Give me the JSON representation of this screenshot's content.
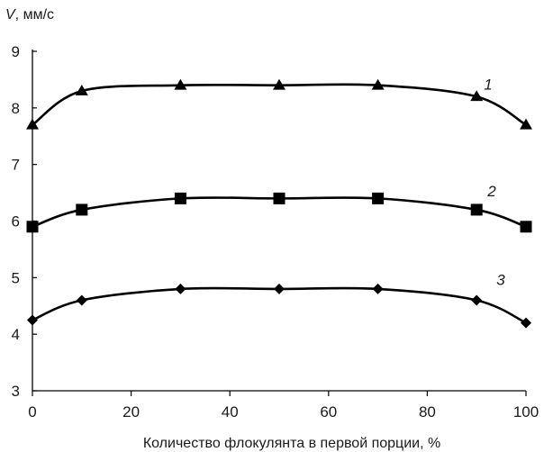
{
  "chart_data": {
    "type": "line",
    "ylabel_var": "V",
    "ylabel_unit": ", мм/с",
    "xlabel": "Количество флокулянта в первой порции, %",
    "xlim": [
      0,
      100
    ],
    "ylim": [
      3,
      9
    ],
    "x_ticks": [
      0,
      20,
      40,
      60,
      80,
      100
    ],
    "y_ticks": [
      3,
      4,
      5,
      6,
      7,
      8,
      9
    ],
    "grid": false,
    "legend": "none",
    "x": [
      0,
      10,
      30,
      50,
      70,
      90,
      100
    ],
    "series": [
      {
        "name": "1",
        "marker": "triangle",
        "color": "#000000",
        "values": [
          7.7,
          8.3,
          8.4,
          8.4,
          8.4,
          8.2,
          7.7
        ]
      },
      {
        "name": "2",
        "marker": "square",
        "color": "#000000",
        "values": [
          5.9,
          6.2,
          6.4,
          6.4,
          6.4,
          6.2,
          5.9
        ]
      },
      {
        "name": "3",
        "marker": "diamond",
        "color": "#000000",
        "values": [
          4.25,
          4.6,
          4.8,
          4.8,
          4.8,
          4.6,
          4.2
        ]
      }
    ]
  }
}
